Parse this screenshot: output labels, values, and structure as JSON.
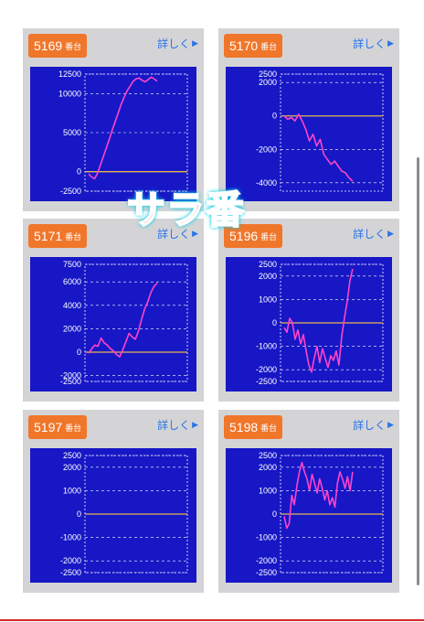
{
  "machines": [
    {
      "number": "5169",
      "suffix": "番台",
      "detail_label": "詳しく",
      "detail_icon": "triangle-right-icon"
    },
    {
      "number": "5170",
      "suffix": "番台",
      "detail_label": "詳しく",
      "detail_icon": "triangle-right-icon"
    },
    {
      "number": "5171",
      "suffix": "番台",
      "detail_label": "詳しく",
      "detail_icon": "triangle-right-icon"
    },
    {
      "number": "5196",
      "suffix": "番台",
      "detail_label": "詳しく",
      "detail_icon": "triangle-right-icon"
    },
    {
      "number": "5197",
      "suffix": "番台",
      "detail_label": "詳しく",
      "detail_icon": "triangle-right-icon"
    },
    {
      "number": "5198",
      "suffix": "番台",
      "detail_label": "詳しく",
      "detail_icon": "triangle-right-icon"
    }
  ],
  "overlay_text": "サラ番",
  "colors": {
    "badge": "#f0762a",
    "card_bg": "#d4d4d6",
    "chart_bg": "#1717c6",
    "line": "#ff44c8",
    "zero_line": "#e7b64f",
    "grid": "#ffffff",
    "detail_link": "#2a74e8",
    "overlay_text": "#ea1f2c",
    "overlay_glow": "#19d0e6"
  },
  "chart_data": [
    {
      "type": "line",
      "machine": "5169",
      "yticks": [
        -2500,
        0,
        5000,
        10000,
        12500
      ],
      "ylim": [
        -2500,
        12500
      ],
      "x": [
        0,
        1,
        2,
        3,
        4,
        5,
        6,
        7,
        8,
        9,
        10,
        11,
        12,
        13,
        14,
        15,
        16,
        17,
        18,
        19,
        20,
        21,
        22,
        23
      ],
      "values": [
        -300,
        -700,
        -900,
        -200,
        900,
        2000,
        3100,
        4200,
        5400,
        6500,
        7600,
        8700,
        9600,
        10400,
        11000,
        11600,
        11900,
        12000,
        11700,
        11500,
        11800,
        12100,
        11900,
        11600
      ]
    },
    {
      "type": "line",
      "machine": "5170",
      "yticks": [
        -4000,
        -2000,
        0,
        2000,
        2500
      ],
      "ylim": [
        -4500,
        2500
      ],
      "x": [
        0,
        1,
        2,
        3,
        4,
        5,
        6,
        7,
        8,
        9,
        10,
        11,
        12,
        13,
        14,
        15,
        16,
        17,
        18,
        19
      ],
      "values": [
        0,
        -200,
        -100,
        -300,
        100,
        -300,
        -800,
        -1500,
        -1100,
        -1800,
        -1400,
        -2300,
        -2600,
        -2900,
        -2700,
        -3000,
        -3300,
        -3400,
        -3700,
        -3900
      ]
    },
    {
      "type": "line",
      "machine": "5171",
      "yticks": [
        -2500,
        -2000,
        0,
        2000,
        4000,
        6000,
        7500
      ],
      "ylim": [
        -2500,
        7500
      ],
      "x": [
        0,
        1,
        2,
        3,
        4,
        5,
        6,
        7,
        8,
        9,
        10,
        11,
        12,
        13,
        14,
        15,
        16,
        17,
        18,
        19,
        20,
        21,
        22
      ],
      "values": [
        -100,
        300,
        600,
        500,
        1200,
        800,
        600,
        300,
        100,
        -200,
        -400,
        200,
        900,
        1600,
        1300,
        1100,
        1800,
        2800,
        3700,
        4300,
        5100,
        5600,
        5900
      ]
    },
    {
      "type": "line",
      "machine": "5196",
      "yticks": [
        -2500,
        -2000,
        -1000,
        0,
        1000,
        2000,
        2500
      ],
      "ylim": [
        -2500,
        2500
      ],
      "x": [
        0,
        1,
        2,
        3,
        4,
        5,
        6,
        7,
        8,
        9,
        10,
        11,
        12,
        13,
        14,
        15,
        16,
        17,
        18,
        19,
        20,
        21,
        22,
        23,
        24,
        25
      ],
      "values": [
        -200,
        -400,
        200,
        0,
        -700,
        -300,
        -900,
        -500,
        -1200,
        -1800,
        -2100,
        -1500,
        -1000,
        -1700,
        -1100,
        -1500,
        -1900,
        -1400,
        -1600,
        -1200,
        -1800,
        -600,
        200,
        900,
        1800,
        2300
      ]
    },
    {
      "type": "line",
      "machine": "5197",
      "yticks": [
        -2500,
        -2000,
        -1000,
        0,
        1000,
        2000,
        2500
      ],
      "ylim": [
        -2500,
        2500
      ],
      "x": [],
      "values": []
    },
    {
      "type": "line",
      "machine": "5198",
      "yticks": [
        -2500,
        -2000,
        -1000,
        0,
        1000,
        2000,
        2500
      ],
      "ylim": [
        -2500,
        2500
      ],
      "x": [
        0,
        1,
        2,
        3,
        4,
        5,
        6,
        7,
        8,
        9,
        10,
        11,
        12,
        13,
        14,
        15,
        16,
        17,
        18,
        19,
        20,
        21,
        22,
        23,
        24,
        25,
        26,
        27
      ],
      "values": [
        -100,
        -600,
        -400,
        800,
        400,
        1200,
        1800,
        2200,
        1800,
        1500,
        1000,
        1700,
        1300,
        900,
        1500,
        1100,
        600,
        1000,
        400,
        700,
        300,
        1300,
        1800,
        1500,
        1100,
        1600,
        1000,
        1800
      ]
    }
  ]
}
